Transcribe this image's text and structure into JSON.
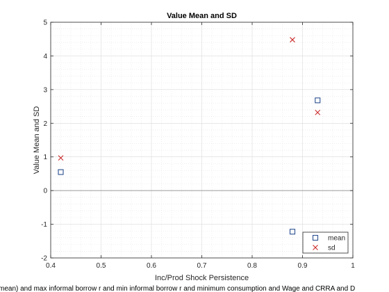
{
  "chart_data": {
    "type": "scatter",
    "title": "Value Mean and SD",
    "xlabel": "Inc/Prod Shock Persistence",
    "ylabel": "Value Mean and SD",
    "xlim": [
      0.4,
      1
    ],
    "ylim": [
      -2,
      5
    ],
    "xticks": [
      "0.4",
      "0.5",
      "0.6",
      "0.7",
      "0.8",
      "0.9",
      "1"
    ],
    "yticks": [
      "-2",
      "-1",
      "0",
      "1",
      "2",
      "3",
      "4",
      "5"
    ],
    "grid": true,
    "minor_grid": true,
    "zero_line": true,
    "legend_position": "bottom-right",
    "series": [
      {
        "name": "mean",
        "marker": "square",
        "color": "#2b4f8f",
        "points": [
          {
            "x": 0.42,
            "y": 0.55
          },
          {
            "x": 0.88,
            "y": -1.22
          },
          {
            "x": 0.93,
            "y": 2.68
          }
        ]
      },
      {
        "name": "sd",
        "marker": "x",
        "color": "#cc2a2a",
        "points": [
          {
            "x": 0.42,
            "y": 0.97
          },
          {
            "x": 0.88,
            "y": 4.48
          },
          {
            "x": 0.93,
            "y": 2.32
          }
        ]
      }
    ],
    "footer_text": "mean) and max informal borrow r and min informal borrow r and minimum consumption and Wage and CRRA and D"
  }
}
